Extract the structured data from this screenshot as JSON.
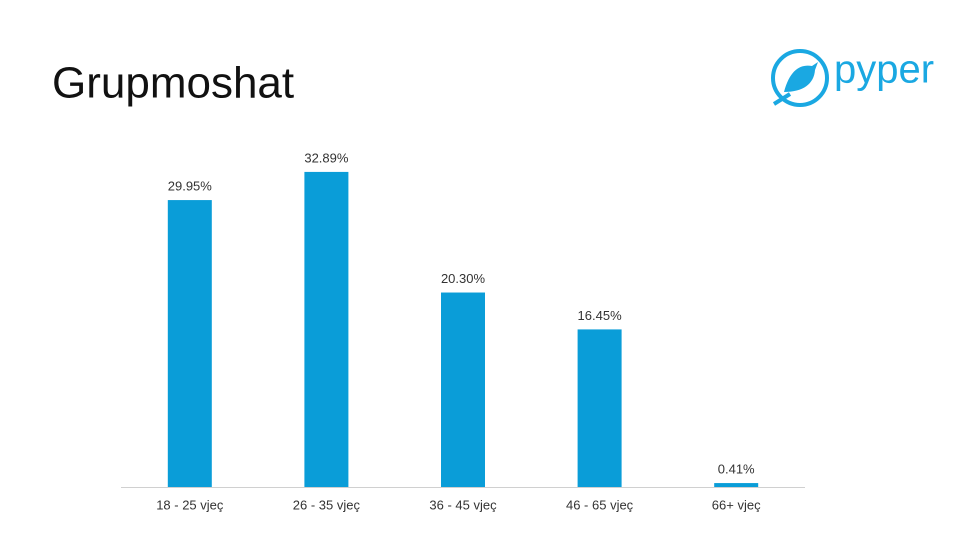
{
  "header": {
    "title": "Grupmoshat",
    "logo": "pyper"
  },
  "chart_data": {
    "type": "bar",
    "categories": [
      "18 - 25 vjeç",
      "26 - 35 vjeç",
      "36 - 45 vjeç",
      "46 - 65 vjeç",
      "66+ vjeç"
    ],
    "values": [
      29.95,
      32.89,
      20.3,
      16.45,
      0.41
    ],
    "value_labels": [
      "29.95%",
      "32.89%",
      "20.30%",
      "16.45%",
      "0.41%"
    ],
    "color": "#0a9dd8"
  }
}
